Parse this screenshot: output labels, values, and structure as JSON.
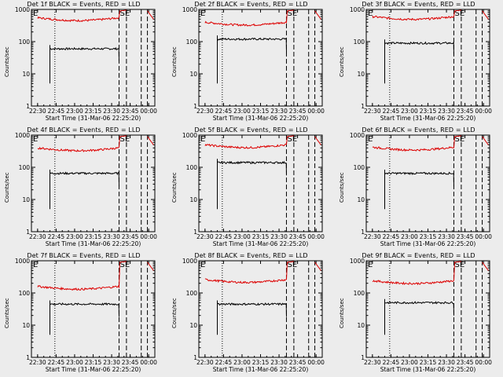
{
  "figure": {
    "background": "#ececec",
    "event_color": "#000000",
    "lld_color": "#dd0000"
  },
  "chart_data": [
    {
      "type": "line",
      "title": "Det 1f BLACK = Events, RED = LLD",
      "ylabel": "Counts/sec",
      "xlabel": "Start Time (31-Mar-06 22:25:20)",
      "x_ticklabels": [
        "22:30",
        "22:45",
        "23:00",
        "23:15",
        "23:30",
        "23:45",
        "00:00"
      ],
      "y_ticklabels": [
        "1",
        "10",
        "100",
        "1000"
      ],
      "yscale": "log",
      "ylim": [
        1,
        1000
      ],
      "markers": [
        "E",
        "SE"
      ],
      "series": [
        {
          "color": "#000000",
          "start": "22:40",
          "end": "23:36",
          "level": 60
        },
        {
          "color": "#dd0000",
          "start": "22:30",
          "end": "23:36",
          "level": 550
        }
      ],
      "vlines_dotted": [
        "22:44"
      ],
      "vlines_dashed": [
        "23:36",
        "23:42",
        "23:54",
        "23:59"
      ]
    },
    {
      "type": "line",
      "title": "Det 2f BLACK = Events, RED = LLD",
      "ylabel": "Counts/sec",
      "xlabel": "Start Time (31-Mar-06 22:25:20)",
      "x_ticklabels": [
        "22:30",
        "22:45",
        "23:00",
        "23:15",
        "23:30",
        "23:45",
        "00:00"
      ],
      "y_ticklabels": [
        "1",
        "10",
        "100",
        "1000"
      ],
      "yscale": "log",
      "ylim": [
        1,
        1000
      ],
      "markers": [
        "E",
        "SE"
      ],
      "series": [
        {
          "color": "#000000",
          "start": "22:40",
          "end": "23:36",
          "level": 120
        },
        {
          "color": "#dd0000",
          "start": "22:30",
          "end": "23:36",
          "level": 400
        }
      ],
      "vlines_dotted": [
        "22:44"
      ],
      "vlines_dashed": [
        "23:36",
        "23:42",
        "23:54",
        "23:59"
      ]
    },
    {
      "type": "line",
      "title": "Det 3f BLACK = Events, RED = LLD",
      "ylabel": "Counts/sec",
      "xlabel": "Start Time (31-Mar-06 22:25:20)",
      "x_ticklabels": [
        "22:30",
        "22:45",
        "23:00",
        "23:15",
        "23:30",
        "23:45",
        "00:00"
      ],
      "y_ticklabels": [
        "1",
        "10",
        "100",
        "1000"
      ],
      "yscale": "log",
      "ylim": [
        1,
        1000
      ],
      "markers": [
        "E",
        "SE"
      ],
      "series": [
        {
          "color": "#000000",
          "start": "22:40",
          "end": "23:36",
          "level": 90
        },
        {
          "color": "#dd0000",
          "start": "22:30",
          "end": "23:36",
          "level": 600
        }
      ],
      "vlines_dotted": [
        "22:44"
      ],
      "vlines_dashed": [
        "23:36",
        "23:42",
        "23:54",
        "23:59"
      ]
    },
    {
      "type": "line",
      "title": "Det 4f BLACK = Events, RED = LLD",
      "ylabel": "Counts/sec",
      "xlabel": "Start Time (31-Mar-06 22:25:20)",
      "x_ticklabels": [
        "22:30",
        "22:45",
        "23:00",
        "23:15",
        "23:30",
        "23:45",
        "00:00"
      ],
      "y_ticklabels": [
        "1",
        "10",
        "100",
        "1000"
      ],
      "yscale": "log",
      "ylim": [
        1,
        1000
      ],
      "markers": [
        "E",
        "SE"
      ],
      "series": [
        {
          "color": "#000000",
          "start": "22:40",
          "end": "23:36",
          "level": 65
        },
        {
          "color": "#dd0000",
          "start": "22:30",
          "end": "23:36",
          "level": 400
        }
      ],
      "vlines_dotted": [
        "22:44"
      ],
      "vlines_dashed": [
        "23:36",
        "23:42",
        "23:54",
        "23:59"
      ]
    },
    {
      "type": "line",
      "title": "Det 5f BLACK = Events, RED = LLD",
      "ylabel": "Counts/sec",
      "xlabel": "Start Time (31-Mar-06 22:25:20)",
      "x_ticklabels": [
        "22:30",
        "22:45",
        "23:00",
        "23:15",
        "23:30",
        "23:45",
        "00:00"
      ],
      "y_ticklabels": [
        "1",
        "10",
        "100",
        "1000"
      ],
      "yscale": "log",
      "ylim": [
        1,
        1000
      ],
      "markers": [
        "E",
        "SE"
      ],
      "series": [
        {
          "color": "#000000",
          "start": "22:40",
          "end": "23:36",
          "level": 140
        },
        {
          "color": "#dd0000",
          "start": "22:30",
          "end": "23:36",
          "level": 500
        }
      ],
      "vlines_dotted": [
        "22:44"
      ],
      "vlines_dashed": [
        "23:36",
        "23:42",
        "23:54",
        "23:59"
      ]
    },
    {
      "type": "line",
      "title": "Det 6f BLACK = Events, RED = LLD",
      "ylabel": "Counts/sec",
      "xlabel": "Start Time (31-Mar-06 22:25:20)",
      "x_ticklabels": [
        "22:30",
        "22:45",
        "23:00",
        "23:15",
        "23:30",
        "23:45",
        "00:00"
      ],
      "y_ticklabels": [
        "1",
        "10",
        "100",
        "1000"
      ],
      "yscale": "log",
      "ylim": [
        1,
        1000
      ],
      "markers": [
        "E",
        "SE"
      ],
      "series": [
        {
          "color": "#000000",
          "start": "22:40",
          "end": "23:36",
          "level": 65
        },
        {
          "color": "#dd0000",
          "start": "22:30",
          "end": "23:36",
          "level": 420
        }
      ],
      "vlines_dotted": [
        "22:44"
      ],
      "vlines_dashed": [
        "23:36",
        "23:42",
        "23:54",
        "23:59"
      ]
    },
    {
      "type": "line",
      "title": "Det 7f BLACK = Events, RED = LLD",
      "ylabel": "Counts/sec",
      "xlabel": "Start Time (31-Mar-06 22:25:20)",
      "x_ticklabels": [
        "22:30",
        "22:45",
        "23:00",
        "23:15",
        "23:30",
        "23:45",
        "00:00"
      ],
      "y_ticklabels": [
        "1",
        "10",
        "100",
        "1000"
      ],
      "yscale": "log",
      "ylim": [
        1,
        1000
      ],
      "markers": [
        "E",
        "SE"
      ],
      "series": [
        {
          "color": "#000000",
          "start": "22:40",
          "end": "23:36",
          "level": 45
        },
        {
          "color": "#dd0000",
          "start": "22:30",
          "end": "23:36",
          "level": 160
        }
      ],
      "vlines_dotted": [
        "22:44"
      ],
      "vlines_dashed": [
        "23:36",
        "23:42",
        "23:54",
        "23:59"
      ]
    },
    {
      "type": "line",
      "title": "Det 8f BLACK = Events, RED = LLD",
      "ylabel": "Counts/sec",
      "xlabel": "Start Time (31-Mar-06 22:25:20)",
      "x_ticklabels": [
        "22:30",
        "22:45",
        "23:00",
        "23:15",
        "23:30",
        "23:45",
        "00:00"
      ],
      "y_ticklabels": [
        "1",
        "10",
        "100",
        "1000"
      ],
      "yscale": "log",
      "ylim": [
        1,
        1000
      ],
      "markers": [
        "E",
        "SE"
      ],
      "series": [
        {
          "color": "#000000",
          "start": "22:40",
          "end": "23:36",
          "level": 45
        },
        {
          "color": "#dd0000",
          "start": "22:30",
          "end": "23:36",
          "level": 260
        }
      ],
      "vlines_dotted": [
        "22:44"
      ],
      "vlines_dashed": [
        "23:36",
        "23:42",
        "23:54",
        "23:59"
      ]
    },
    {
      "type": "line",
      "title": "Det 9f BLACK = Events, RED = LLD",
      "ylabel": "Counts/sec",
      "xlabel": "Start Time (31-Mar-06 22:25:20)",
      "x_ticklabels": [
        "22:30",
        "22:45",
        "23:00",
        "23:15",
        "23:30",
        "23:45",
        "00:00"
      ],
      "y_ticklabels": [
        "1",
        "10",
        "100",
        "1000"
      ],
      "yscale": "log",
      "ylim": [
        1,
        1000
      ],
      "markers": [
        "E",
        "SE"
      ],
      "series": [
        {
          "color": "#000000",
          "start": "22:40",
          "end": "23:36",
          "level": 50
        },
        {
          "color": "#dd0000",
          "start": "22:30",
          "end": "23:36",
          "level": 240
        }
      ],
      "vlines_dotted": [
        "22:44"
      ],
      "vlines_dashed": [
        "23:36",
        "23:42",
        "23:54",
        "23:59"
      ]
    }
  ]
}
